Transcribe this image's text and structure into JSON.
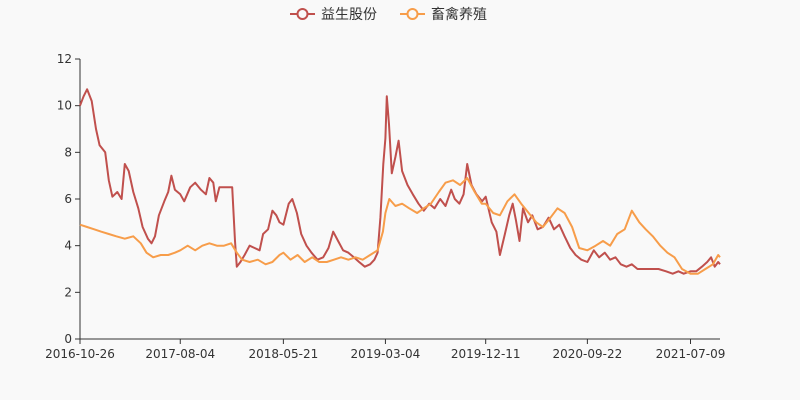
{
  "chart_data": {
    "type": "line",
    "title": "",
    "xlabel": "",
    "ylabel": "",
    "ylim": [
      0,
      12
    ],
    "yticks": [
      0,
      2,
      4,
      6,
      8,
      10,
      12
    ],
    "xlim": [
      "2016-10-26",
      "2021-09-30"
    ],
    "xticks": [
      "2016-10-26",
      "2017-08-04",
      "2018-05-21",
      "2019-03-04",
      "2019-12-11",
      "2020-09-22",
      "2021-07-09"
    ],
    "grid": false,
    "legend_position": "top-center",
    "series": [
      {
        "name": "益生股份",
        "color": "#c0504d",
        "points": [
          [
            "2016-10-26",
            10.0
          ],
          [
            "2016-11-05",
            10.4
          ],
          [
            "2016-11-15",
            10.7
          ],
          [
            "2016-11-28",
            10.2
          ],
          [
            "2016-12-10",
            9.0
          ],
          [
            "2016-12-20",
            8.3
          ],
          [
            "2017-01-05",
            8.0
          ],
          [
            "2017-01-15",
            6.8
          ],
          [
            "2017-01-25",
            6.1
          ],
          [
            "2017-02-08",
            6.3
          ],
          [
            "2017-02-20",
            6.0
          ],
          [
            "2017-03-01",
            7.5
          ],
          [
            "2017-03-12",
            7.2
          ],
          [
            "2017-03-25",
            6.3
          ],
          [
            "2017-04-08",
            5.6
          ],
          [
            "2017-04-20",
            4.8
          ],
          [
            "2017-05-05",
            4.3
          ],
          [
            "2017-05-15",
            4.1
          ],
          [
            "2017-05-25",
            4.4
          ],
          [
            "2017-06-05",
            5.3
          ],
          [
            "2017-06-20",
            5.9
          ],
          [
            "2017-07-01",
            6.3
          ],
          [
            "2017-07-10",
            7.0
          ],
          [
            "2017-07-20",
            6.4
          ],
          [
            "2017-08-04",
            6.2
          ],
          [
            "2017-08-15",
            5.9
          ],
          [
            "2017-09-01",
            6.5
          ],
          [
            "2017-09-15",
            6.7
          ],
          [
            "2017-10-01",
            6.4
          ],
          [
            "2017-10-15",
            6.2
          ],
          [
            "2017-10-25",
            6.9
          ],
          [
            "2017-11-05",
            6.7
          ],
          [
            "2017-11-12",
            5.9
          ],
          [
            "2017-11-22",
            6.5
          ],
          [
            "2017-12-10",
            6.5
          ],
          [
            "2017-12-28",
            6.5
          ],
          [
            "2018-01-05",
            4.2
          ],
          [
            "2018-01-10",
            3.1
          ],
          [
            "2018-01-20",
            3.3
          ],
          [
            "2018-02-01",
            3.6
          ],
          [
            "2018-02-15",
            4.0
          ],
          [
            "2018-03-01",
            3.9
          ],
          [
            "2018-03-15",
            3.8
          ],
          [
            "2018-03-25",
            4.5
          ],
          [
            "2018-04-08",
            4.7
          ],
          [
            "2018-04-20",
            5.5
          ],
          [
            "2018-05-01",
            5.3
          ],
          [
            "2018-05-10",
            5.0
          ],
          [
            "2018-05-21",
            4.9
          ],
          [
            "2018-06-05",
            5.8
          ],
          [
            "2018-06-15",
            6.0
          ],
          [
            "2018-06-28",
            5.4
          ],
          [
            "2018-07-10",
            4.5
          ],
          [
            "2018-07-25",
            4.0
          ],
          [
            "2018-08-08",
            3.7
          ],
          [
            "2018-08-25",
            3.4
          ],
          [
            "2018-09-10",
            3.5
          ],
          [
            "2018-09-25",
            3.9
          ],
          [
            "2018-10-08",
            4.6
          ],
          [
            "2018-10-22",
            4.2
          ],
          [
            "2018-11-05",
            3.8
          ],
          [
            "2018-11-20",
            3.7
          ],
          [
            "2018-12-05",
            3.5
          ],
          [
            "2018-12-20",
            3.3
          ],
          [
            "2019-01-05",
            3.1
          ],
          [
            "2019-01-20",
            3.2
          ],
          [
            "2019-02-01",
            3.4
          ],
          [
            "2019-02-10",
            3.7
          ],
          [
            "2019-02-18",
            5.2
          ],
          [
            "2019-02-26",
            7.5
          ],
          [
            "2019-03-04",
            8.6
          ],
          [
            "2019-03-08",
            10.4
          ],
          [
            "2019-03-14",
            9.2
          ],
          [
            "2019-03-22",
            7.1
          ],
          [
            "2019-04-01",
            7.8
          ],
          [
            "2019-04-10",
            8.5
          ],
          [
            "2019-04-20",
            7.2
          ],
          [
            "2019-05-05",
            6.6
          ],
          [
            "2019-05-20",
            6.2
          ],
          [
            "2019-06-05",
            5.8
          ],
          [
            "2019-06-20",
            5.5
          ],
          [
            "2019-07-05",
            5.8
          ],
          [
            "2019-07-20",
            5.6
          ],
          [
            "2019-08-05",
            6.0
          ],
          [
            "2019-08-20",
            5.7
          ],
          [
            "2019-09-05",
            6.4
          ],
          [
            "2019-09-15",
            6.0
          ],
          [
            "2019-09-28",
            5.8
          ],
          [
            "2019-10-10",
            6.2
          ],
          [
            "2019-10-20",
            7.5
          ],
          [
            "2019-11-01",
            6.6
          ],
          [
            "2019-11-15",
            6.2
          ],
          [
            "2019-12-01",
            5.9
          ],
          [
            "2019-12-11",
            6.1
          ],
          [
            "2019-12-28",
            5.0
          ],
          [
            "2020-01-10",
            4.6
          ],
          [
            "2020-01-20",
            3.6
          ],
          [
            "2020-02-03",
            4.5
          ],
          [
            "2020-02-15",
            5.3
          ],
          [
            "2020-02-25",
            5.8
          ],
          [
            "2020-03-05",
            5.1
          ],
          [
            "2020-03-15",
            4.2
          ],
          [
            "2020-03-25",
            5.6
          ],
          [
            "2020-04-08",
            5.0
          ],
          [
            "2020-04-20",
            5.3
          ],
          [
            "2020-05-05",
            4.7
          ],
          [
            "2020-05-20",
            4.8
          ],
          [
            "2020-06-05",
            5.2
          ],
          [
            "2020-06-20",
            4.7
          ],
          [
            "2020-07-05",
            4.9
          ],
          [
            "2020-07-20",
            4.4
          ],
          [
            "2020-08-05",
            3.9
          ],
          [
            "2020-08-20",
            3.6
          ],
          [
            "2020-09-05",
            3.4
          ],
          [
            "2020-09-22",
            3.3
          ],
          [
            "2020-10-10",
            3.8
          ],
          [
            "2020-10-25",
            3.5
          ],
          [
            "2020-11-10",
            3.7
          ],
          [
            "2020-11-25",
            3.4
          ],
          [
            "2020-12-10",
            3.5
          ],
          [
            "2020-12-25",
            3.2
          ],
          [
            "2021-01-10",
            3.1
          ],
          [
            "2021-01-25",
            3.2
          ],
          [
            "2021-02-10",
            3.0
          ],
          [
            "2021-03-01",
            3.0
          ],
          [
            "2021-03-20",
            3.0
          ],
          [
            "2021-04-10",
            3.0
          ],
          [
            "2021-05-01",
            2.9
          ],
          [
            "2021-05-20",
            2.8
          ],
          [
            "2021-06-05",
            2.9
          ],
          [
            "2021-06-20",
            2.8
          ],
          [
            "2021-07-09",
            2.9
          ],
          [
            "2021-07-25",
            2.9
          ],
          [
            "2021-08-10",
            3.1
          ],
          [
            "2021-08-25",
            3.3
          ],
          [
            "2021-09-05",
            3.5
          ],
          [
            "2021-09-15",
            3.1
          ],
          [
            "2021-09-25",
            3.3
          ],
          [
            "2021-09-30",
            3.2
          ]
        ]
      },
      {
        "name": "畜禽养殖",
        "color": "#f79d4a",
        "points": [
          [
            "2016-10-26",
            4.9
          ],
          [
            "2016-11-15",
            4.8
          ],
          [
            "2016-12-05",
            4.7
          ],
          [
            "2016-12-25",
            4.6
          ],
          [
            "2017-01-15",
            4.5
          ],
          [
            "2017-02-05",
            4.4
          ],
          [
            "2017-03-01",
            4.3
          ],
          [
            "2017-03-25",
            4.4
          ],
          [
            "2017-04-15",
            4.1
          ],
          [
            "2017-05-01",
            3.7
          ],
          [
            "2017-05-20",
            3.5
          ],
          [
            "2017-06-10",
            3.6
          ],
          [
            "2017-07-01",
            3.6
          ],
          [
            "2017-07-20",
            3.7
          ],
          [
            "2017-08-04",
            3.8
          ],
          [
            "2017-08-25",
            4.0
          ],
          [
            "2017-09-15",
            3.8
          ],
          [
            "2017-10-05",
            4.0
          ],
          [
            "2017-10-25",
            4.1
          ],
          [
            "2017-11-15",
            4.0
          ],
          [
            "2017-12-05",
            4.0
          ],
          [
            "2017-12-25",
            4.1
          ],
          [
            "2018-01-10",
            3.7
          ],
          [
            "2018-01-25",
            3.4
          ],
          [
            "2018-02-15",
            3.3
          ],
          [
            "2018-03-10",
            3.4
          ],
          [
            "2018-04-01",
            3.2
          ],
          [
            "2018-04-20",
            3.3
          ],
          [
            "2018-05-10",
            3.6
          ],
          [
            "2018-05-21",
            3.7
          ],
          [
            "2018-06-10",
            3.4
          ],
          [
            "2018-06-30",
            3.6
          ],
          [
            "2018-07-20",
            3.3
          ],
          [
            "2018-08-10",
            3.5
          ],
          [
            "2018-08-30",
            3.3
          ],
          [
            "2018-09-20",
            3.3
          ],
          [
            "2018-10-10",
            3.4
          ],
          [
            "2018-10-30",
            3.5
          ],
          [
            "2018-11-20",
            3.4
          ],
          [
            "2018-12-10",
            3.5
          ],
          [
            "2018-12-30",
            3.4
          ],
          [
            "2019-01-20",
            3.6
          ],
          [
            "2019-02-10",
            3.8
          ],
          [
            "2019-02-25",
            4.6
          ],
          [
            "2019-03-04",
            5.4
          ],
          [
            "2019-03-15",
            6.0
          ],
          [
            "2019-04-01",
            5.7
          ],
          [
            "2019-04-20",
            5.8
          ],
          [
            "2019-05-10",
            5.6
          ],
          [
            "2019-06-01",
            5.4
          ],
          [
            "2019-06-20",
            5.6
          ],
          [
            "2019-07-10",
            5.8
          ],
          [
            "2019-08-01",
            6.3
          ],
          [
            "2019-08-20",
            6.7
          ],
          [
            "2019-09-10",
            6.8
          ],
          [
            "2019-09-30",
            6.6
          ],
          [
            "2019-10-20",
            6.9
          ],
          [
            "2019-11-10",
            6.3
          ],
          [
            "2019-11-30",
            5.8
          ],
          [
            "2019-12-11",
            5.8
          ],
          [
            "2020-01-01",
            5.4
          ],
          [
            "2020-01-20",
            5.3
          ],
          [
            "2020-02-10",
            5.9
          ],
          [
            "2020-03-01",
            6.2
          ],
          [
            "2020-03-20",
            5.8
          ],
          [
            "2020-04-10",
            5.4
          ],
          [
            "2020-05-01",
            5.0
          ],
          [
            "2020-05-20",
            4.8
          ],
          [
            "2020-06-10",
            5.2
          ],
          [
            "2020-06-30",
            5.6
          ],
          [
            "2020-07-20",
            5.4
          ],
          [
            "2020-08-10",
            4.8
          ],
          [
            "2020-08-30",
            3.9
          ],
          [
            "2020-09-22",
            3.8
          ],
          [
            "2020-10-15",
            4.0
          ],
          [
            "2020-11-05",
            4.2
          ],
          [
            "2020-11-25",
            4.0
          ],
          [
            "2020-12-15",
            4.5
          ],
          [
            "2021-01-05",
            4.7
          ],
          [
            "2021-01-25",
            5.5
          ],
          [
            "2021-02-15",
            5.0
          ],
          [
            "2021-03-05",
            4.7
          ],
          [
            "2021-03-25",
            4.4
          ],
          [
            "2021-04-15",
            4.0
          ],
          [
            "2021-05-05",
            3.7
          ],
          [
            "2021-05-25",
            3.5
          ],
          [
            "2021-06-15",
            3.0
          ],
          [
            "2021-07-09",
            2.8
          ],
          [
            "2021-07-30",
            2.8
          ],
          [
            "2021-08-20",
            3.0
          ],
          [
            "2021-09-10",
            3.2
          ],
          [
            "2021-09-25",
            3.6
          ],
          [
            "2021-09-30",
            3.5
          ]
        ]
      }
    ]
  }
}
